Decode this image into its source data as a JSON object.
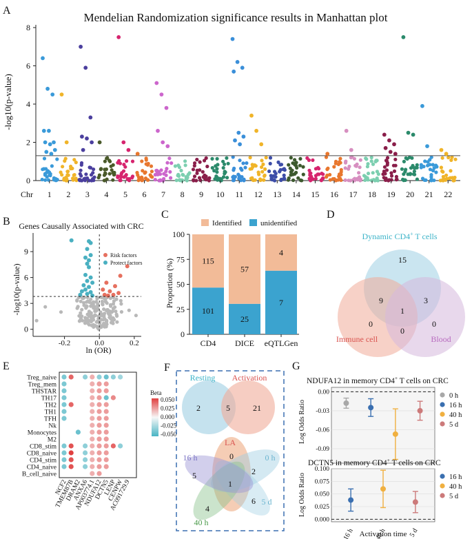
{
  "panel_letters": [
    "A",
    "B",
    "C",
    "D",
    "E",
    "F",
    "G"
  ],
  "chart_data": [
    {
      "panel": "A",
      "type": "scatter",
      "title": "Mendelian Randomization significance results in Manhattan plot",
      "ylabel": "-log10(p-value)",
      "xlabel": "Chr",
      "ylim": [
        0,
        8
      ],
      "yticks": [
        0,
        2,
        4,
        6,
        8
      ],
      "threshold": 1.3,
      "chromosomes": [
        "1",
        "2",
        "3",
        "4",
        "5",
        "6",
        "7",
        "8",
        "9",
        "10",
        "11",
        "12",
        "13",
        "14",
        "15",
        "16",
        "17",
        "18",
        "19",
        "20",
        "21",
        "22"
      ],
      "colors": [
        "#3a9ad9",
        "#f0b429",
        "#4b3f9e",
        "#4a5a2a",
        "#d6246e",
        "#e8772e",
        "#cc66cc",
        "#7ccfb0",
        "#8a1e4a",
        "#2b8a6b",
        "#3a8fd9",
        "#f0b429",
        "#3d4da8",
        "#3d5a2e",
        "#d6246e",
        "#e8772e",
        "#d78fc0",
        "#7ccfb0",
        "#8a1e4a",
        "#2b8a6b",
        "#3a9ad9",
        "#f0b429"
      ],
      "significant_points": [
        {
          "chr": "1",
          "values": [
            6.4,
            4.8,
            4.5,
            2.6,
            2.6,
            2.0,
            2.0,
            1.9,
            1.6,
            1.5,
            1.4
          ]
        },
        {
          "chr": "2",
          "values": [
            4.5,
            2.0
          ]
        },
        {
          "chr": "3",
          "values": [
            7.0,
            5.9,
            3.3,
            2.3,
            2.2,
            2.0,
            1.6
          ]
        },
        {
          "chr": "4",
          "values": [
            2.0
          ]
        },
        {
          "chr": "5",
          "values": [
            7.5,
            2.0,
            1.6
          ]
        },
        {
          "chr": "6",
          "values": [
            1.4
          ]
        },
        {
          "chr": "7",
          "values": [
            5.1,
            4.5,
            3.8,
            2.6,
            2.0,
            1.8
          ]
        },
        {
          "chr": "11",
          "values": [
            7.4,
            6.2,
            5.9,
            5.7,
            2.5,
            2.3,
            2.1,
            1.9
          ]
        },
        {
          "chr": "12",
          "values": [
            3.4,
            2.6,
            1.9
          ]
        },
        {
          "chr": "16",
          "values": [
            1.4
          ]
        },
        {
          "chr": "17",
          "values": [
            2.6,
            1.6
          ]
        },
        {
          "chr": "19",
          "values": [
            2.4,
            2.1,
            1.9,
            1.7,
            1.5,
            1.4
          ]
        },
        {
          "chr": "20",
          "values": [
            7.5,
            2.5,
            2.4
          ]
        },
        {
          "chr": "21",
          "values": [
            3.9,
            1.8
          ]
        },
        {
          "chr": "22",
          "values": [
            1.6,
            1.4
          ]
        }
      ]
    },
    {
      "panel": "B",
      "type": "scatter",
      "title": "Genes Causally Associated with CRC",
      "xlabel": "ln (OR)",
      "ylabel": "-log10(p-value)",
      "xlim": [
        -0.38,
        0.24
      ],
      "ylim": [
        -0.5,
        11
      ],
      "xticks": [
        -0.2,
        0.0,
        0.2
      ],
      "xtick_labels": [
        "-0.2",
        "0.0",
        "0.2"
      ],
      "yticks": [
        0,
        3,
        6,
        9
      ],
      "threshold": 3.8,
      "legend": [
        "Risk factors",
        "Protect factors"
      ],
      "series_colors": {
        "risk": "#e6705f",
        "protect": "#4ab0c1",
        "ns": "#b8b8b8"
      },
      "risk_points": [
        [
          0.16,
          7.3
        ],
        [
          0.12,
          6.2
        ],
        [
          0.04,
          5.4
        ],
        [
          0.09,
          5.0
        ],
        [
          0.02,
          4.6
        ],
        [
          0.06,
          4.4
        ],
        [
          0.11,
          4.2
        ],
        [
          0.03,
          4.0
        ],
        [
          0.08,
          4.0
        ],
        [
          0.05,
          3.9
        ]
      ],
      "protect_points": [
        [
          -0.16,
          10.3
        ],
        [
          -0.06,
          10.2
        ],
        [
          -0.05,
          10.0
        ],
        [
          -0.07,
          9.3
        ],
        [
          -0.05,
          8.6
        ],
        [
          -0.08,
          8.3
        ],
        [
          -0.06,
          8.0
        ],
        [
          -0.07,
          7.6
        ],
        [
          -0.06,
          7.2
        ],
        [
          -0.08,
          6.3
        ],
        [
          -0.05,
          6.0
        ],
        [
          -0.07,
          5.6
        ],
        [
          -0.04,
          5.4
        ],
        [
          -0.09,
          5.1
        ],
        [
          -0.06,
          4.9
        ],
        [
          -0.08,
          4.6
        ],
        [
          -0.1,
          4.4
        ],
        [
          -0.05,
          4.3
        ],
        [
          -0.07,
          4.1
        ],
        [
          -0.11,
          4.0
        ],
        [
          -0.04,
          3.9
        ]
      ]
    },
    {
      "panel": "C",
      "type": "bar",
      "stacked": true,
      "ylabel": "Proportion (%)",
      "categories": [
        "CD4",
        "DICE",
        "eQTLGen"
      ],
      "yticks": [
        0,
        25,
        50,
        75,
        100
      ],
      "legend": [
        "Identified",
        "unidentified"
      ],
      "series": [
        {
          "name": "unidentified",
          "color": "#3ba3cf",
          "counts": [
            101,
            25,
            7
          ]
        },
        {
          "name": "Identified",
          "color": "#f2bb98",
          "counts": [
            115,
            57,
            4
          ]
        }
      ],
      "count_labels": {
        "identified": [
          "115",
          "57",
          "4"
        ],
        "unidentified": [
          "101",
          "25",
          "7"
        ]
      }
    },
    {
      "panel": "D",
      "type": "venn",
      "sets": [
        {
          "name": "Dynamic CD4",
          "superscript": "+",
          "suffix": " T cells",
          "color": "#9fcfe3",
          "label_color": "#3bb3c8"
        },
        {
          "name": "Immune cell",
          "color": "#f0ab99",
          "label_color": "#d9534f"
        },
        {
          "name": "Blood",
          "color": "#d6b8dc",
          "label_color": "#b86bbf"
        }
      ],
      "regions": {
        "dynamic_only": "15",
        "immune_only": "0",
        "blood_only": "0",
        "dynamic_immune": "9",
        "dynamic_blood": "3",
        "immune_blood": "0",
        "all": "1"
      }
    },
    {
      "panel": "E",
      "type": "heatmap",
      "legend_title": "Beta",
      "colorbar_ticks": [
        "0.050",
        "0.025",
        "0.000",
        "-0.025",
        "-0.050"
      ],
      "rows": [
        "Treg_naive",
        "Treg_mem",
        "THSTAR",
        "TH17",
        "TH2",
        "TH1",
        "TFH",
        "Nk",
        "Monocytes",
        "M2",
        "CD8_stim",
        "CD8_naive",
        "CD4_stim",
        "CD4_naive",
        "B_cell_naive"
      ],
      "columns": [
        "NCF2",
        "TMEM87B",
        "DRAM2",
        "ANXA6",
        "AP003774.1",
        "NDUFA12",
        "DCTN5",
        "LENP",
        "CENPW",
        "AC091729.9"
      ],
      "values": [
        [
          -0.035,
          0.04,
          null,
          -0.03,
          0.02,
          -0.03,
          -0.04,
          -0.03,
          -0.025,
          null
        ],
        [
          -0.035,
          null,
          null,
          null,
          0.02,
          0.025,
          0.025,
          null,
          null,
          null
        ],
        [
          -0.035,
          null,
          null,
          null,
          0.02,
          0.025,
          0.025,
          null,
          null,
          null
        ],
        [
          -0.035,
          null,
          null,
          null,
          0.02,
          0.025,
          -0.04,
          0.03,
          null,
          null
        ],
        [
          -0.035,
          0.04,
          null,
          null,
          0.02,
          0.025,
          0.025,
          null,
          null,
          null
        ],
        [
          -0.035,
          null,
          null,
          null,
          0.02,
          0.025,
          0.025,
          null,
          null,
          null
        ],
        [
          -0.035,
          null,
          null,
          null,
          0.02,
          0.025,
          0.025,
          null,
          null,
          null
        ],
        [
          null,
          null,
          null,
          null,
          0.02,
          0.025,
          0.025,
          null,
          null,
          null
        ],
        [
          null,
          null,
          -0.04,
          null,
          0.02,
          0.025,
          0.025,
          null,
          null,
          null
        ],
        [
          null,
          null,
          null,
          null,
          0.02,
          0.025,
          0.025,
          null,
          null,
          null
        ],
        [
          -0.035,
          0.045,
          null,
          -0.03,
          0.02,
          0.025,
          0.025,
          0.04,
          -0.03,
          null
        ],
        [
          -0.035,
          0.05,
          null,
          -0.03,
          0.02,
          0.025,
          0.025,
          null,
          null,
          null
        ],
        [
          -0.035,
          0.045,
          null,
          -0.03,
          0.02,
          0.025,
          0.025,
          null,
          null,
          null
        ],
        [
          -0.035,
          0.045,
          null,
          -0.03,
          0.02,
          0.025,
          0.025,
          null,
          null,
          null
        ],
        [
          null,
          null,
          null,
          null,
          0.02,
          0.025,
          null,
          null,
          null,
          null
        ]
      ]
    },
    {
      "panel": "F",
      "type": "venn",
      "top": {
        "sets": [
          {
            "name": "Resting",
            "color": "#9fcfe3",
            "label_color": "#3bb3c8"
          },
          {
            "name": "Activation",
            "color": "#f0ab99",
            "label_color": "#d9534f"
          }
        ],
        "regions": {
          "resting_only": "2",
          "overlap": "5",
          "activation_only": "21"
        }
      },
      "bottom": {
        "sets": [
          {
            "name": "LA",
            "color": "#e8915c",
            "label_color": "#d9534f"
          },
          {
            "name": "0 h",
            "color": "#9fcfe3",
            "label_color": "#6ab4cf"
          },
          {
            "name": "5 d",
            "color": "#9fcfe3",
            "label_color": "#6ab4cf"
          },
          {
            "name": "40 h",
            "color": "#8bc48f",
            "label_color": "#4a9a4a"
          },
          {
            "name": "16 h",
            "color": "#9c95d4",
            "label_color": "#7b74c4"
          }
        ],
        "regions": {
          "la_only": "0",
          "h0_only": "2",
          "d5_only": "6",
          "h40_only": "4",
          "h16_only": "5",
          "all": "1"
        }
      }
    },
    {
      "panel": "G",
      "type": "scatter",
      "subplots": [
        {
          "title_prefix": "NDUFA12 in memory CD4",
          "title_sup": "+",
          "title_suffix": " T cells on CRC",
          "ylabel": "Log Odds Ratio",
          "ylim": [
            -0.113,
            0.007
          ],
          "yticks": [
            0.0,
            -0.03,
            -0.06,
            -0.09
          ],
          "ytick_labels": [
            "0.00",
            "-0.03",
            "-0.06",
            "-0.09"
          ],
          "categories": [
            "0 h",
            "16 h",
            "40 h",
            "5 d"
          ],
          "estimates": [
            -0.018,
            -0.025,
            -0.067,
            -0.03
          ],
          "ci_low": [
            -0.026,
            -0.039,
            -0.107,
            -0.045
          ],
          "ci_high": [
            -0.01,
            -0.011,
            -0.027,
            -0.015
          ],
          "colors": [
            "#a8a8a8",
            "#3a6fb0",
            "#f0b040",
            "#cc7a7a"
          ],
          "legend": [
            "0 h",
            "16 h",
            "40 h",
            "5 d"
          ]
        },
        {
          "title_prefix": "DCTN5 in memory CD4",
          "title_sup": "+",
          "title_suffix": " T cells on CRC",
          "ylabel": "Log Odds Ratio",
          "xlabel": "Activation time",
          "ylim": [
            -0.005,
            0.1
          ],
          "yticks": [
            0.0,
            0.025,
            0.05,
            0.075,
            0.1
          ],
          "ytick_labels": [
            "0.000",
            "0.025",
            "0.050",
            "0.075",
            "0.100"
          ],
          "categories": [
            "16 h",
            "40 h",
            "5 d"
          ],
          "estimates": [
            0.038,
            0.06,
            0.034
          ],
          "ci_low": [
            0.016,
            0.023,
            0.013
          ],
          "ci_high": [
            0.06,
            0.097,
            0.055
          ],
          "colors": [
            "#3a6fb0",
            "#f0b040",
            "#cc7a7a"
          ],
          "legend": [
            "16 h",
            "40 h",
            "5 d"
          ]
        }
      ]
    }
  ]
}
